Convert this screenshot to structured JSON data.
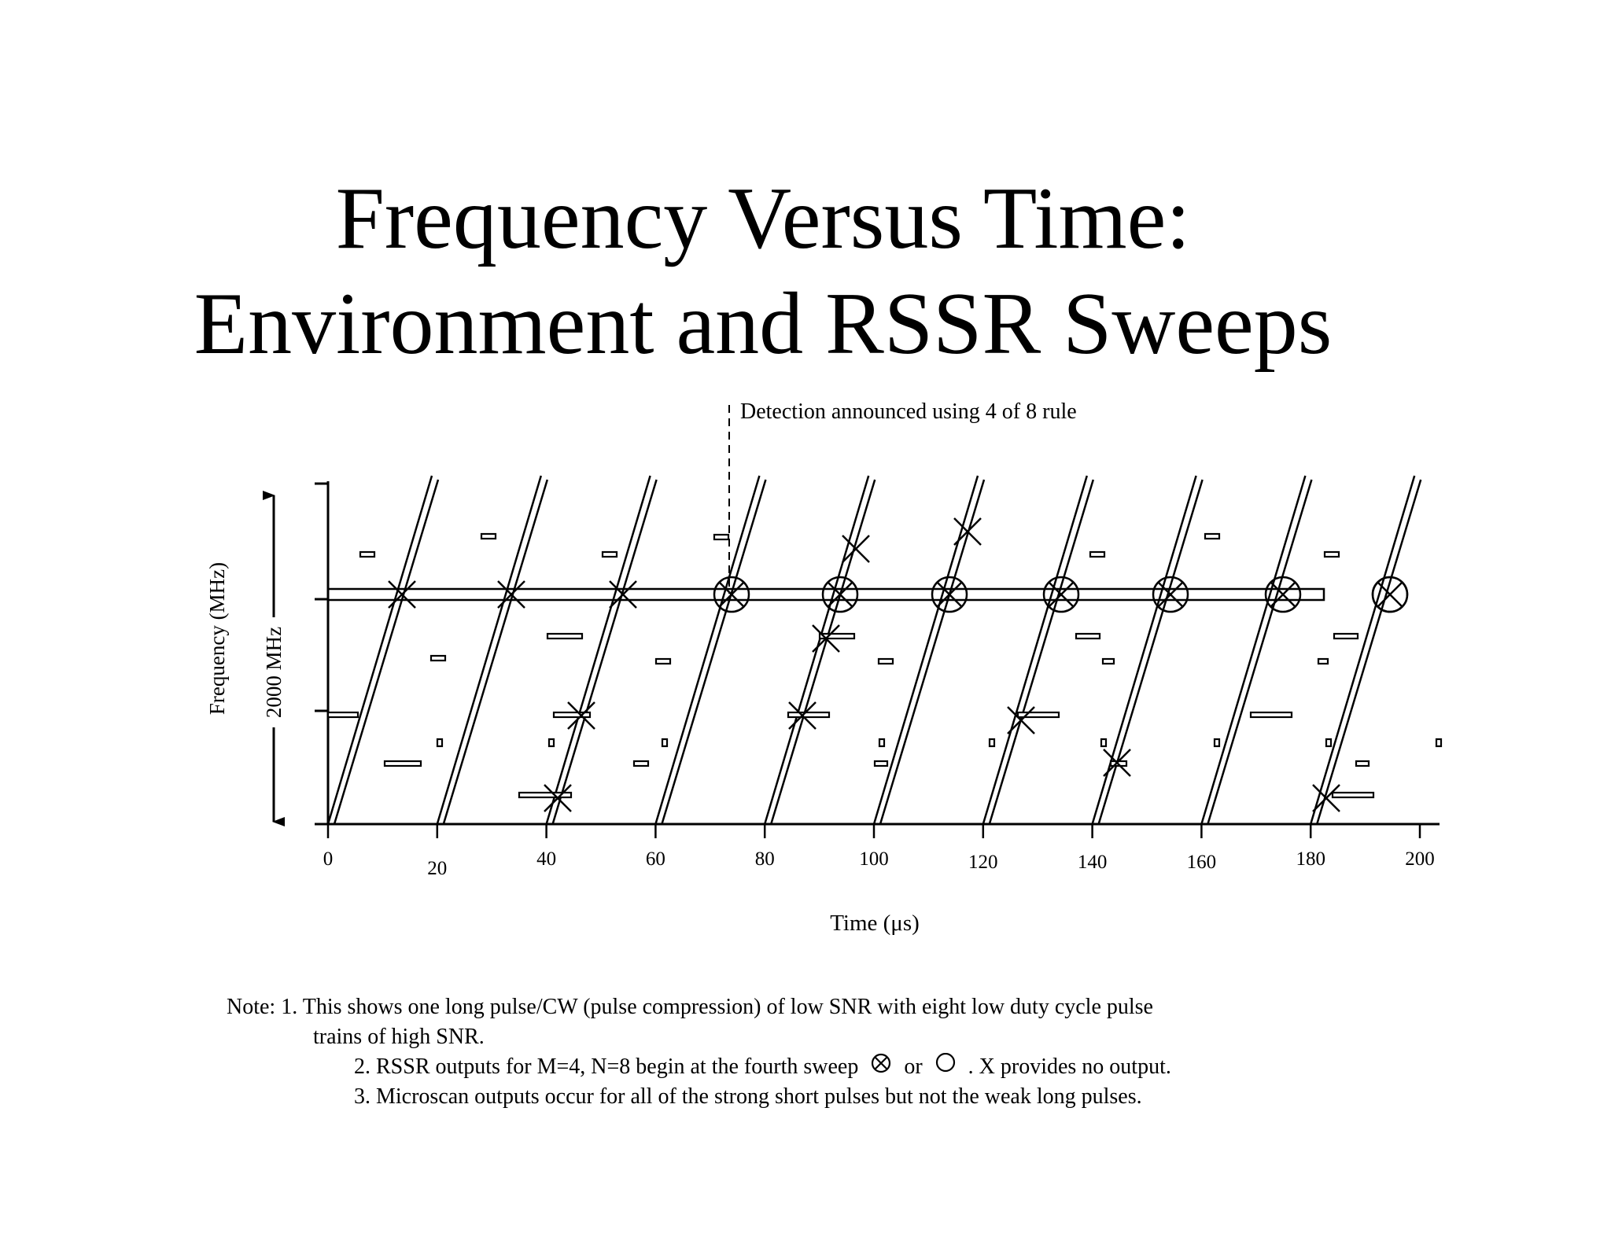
{
  "title": {
    "line1": "Frequency Versus Time:",
    "line2": "Environment and RSSR Sweeps"
  },
  "annotation": "Detection announced using 4 of 8 rule",
  "axes": {
    "xlabel": "Time (μs)",
    "ylabel": "Frequency (MHz)",
    "yspan_label": "2000 MHz",
    "xticks": [
      "0",
      "20",
      "40",
      "60",
      "80",
      "100",
      "120",
      "140",
      "160",
      "180",
      "200"
    ],
    "xrange": [
      0,
      200
    ]
  },
  "notes": {
    "prefix": "Note:",
    "n1a": "1. This shows one long pulse/CW (pulse compression) of low SNR with eight low duty cycle pulse",
    "n1b": "trains of high SNR.",
    "n2a": "2. RSSR outputs for M=4, N=8 begin at the fourth sweep",
    "n2or": "or",
    "n2b": ".  X provides no output.",
    "n3": "3. Microscan outputs occur for all of the strong short pulses but not the weak long pulses.",
    "symbols": [
      "circle-x-icon",
      "circle-icon"
    ]
  },
  "sweep_starts_us": [
    0,
    20,
    40,
    60,
    80,
    100,
    120,
    140,
    160,
    180
  ]
}
